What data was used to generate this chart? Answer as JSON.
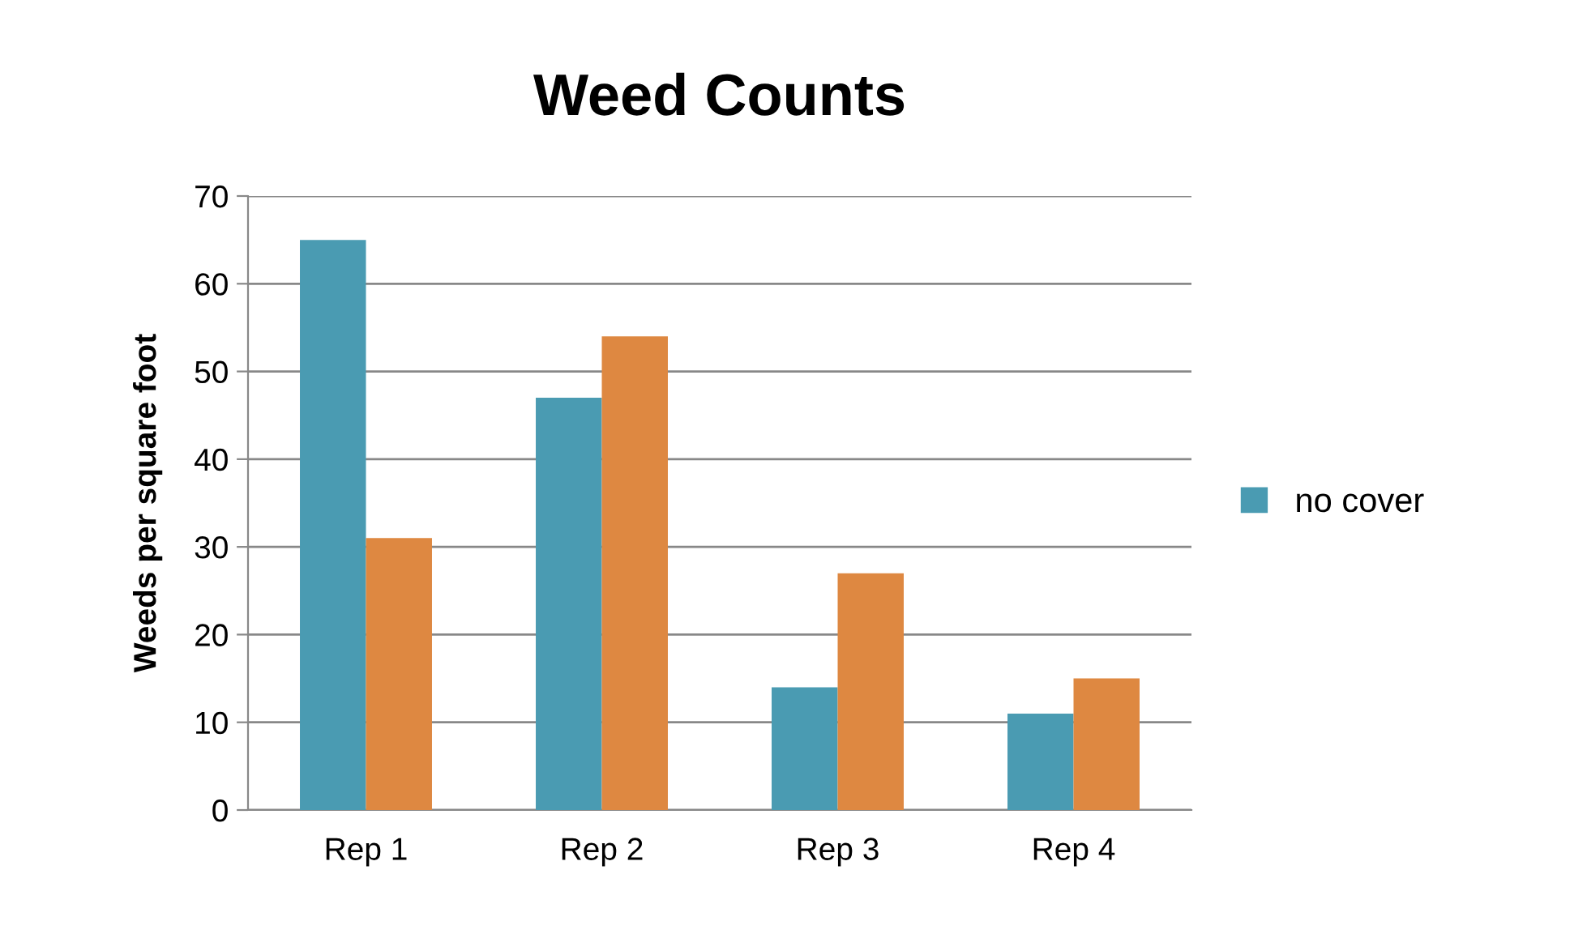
{
  "chart_data": {
    "type": "bar",
    "title": "Weed Counts",
    "ylabel": "Weeds per square foot",
    "categories": [
      "Rep 1",
      "Rep 2",
      "Rep 3",
      "Rep 4"
    ],
    "series": [
      {
        "name": "no cover",
        "color": "#4a9bb2",
        "values": [
          65,
          47,
          14,
          11
        ]
      },
      {
        "color": "#de8841",
        "values": [
          31,
          54,
          27,
          15
        ]
      }
    ],
    "ylim": [
      0,
      70
    ],
    "yticks": [
      0,
      10,
      20,
      30,
      40,
      50,
      60,
      70
    ],
    "grid": "y",
    "legend": "right"
  }
}
